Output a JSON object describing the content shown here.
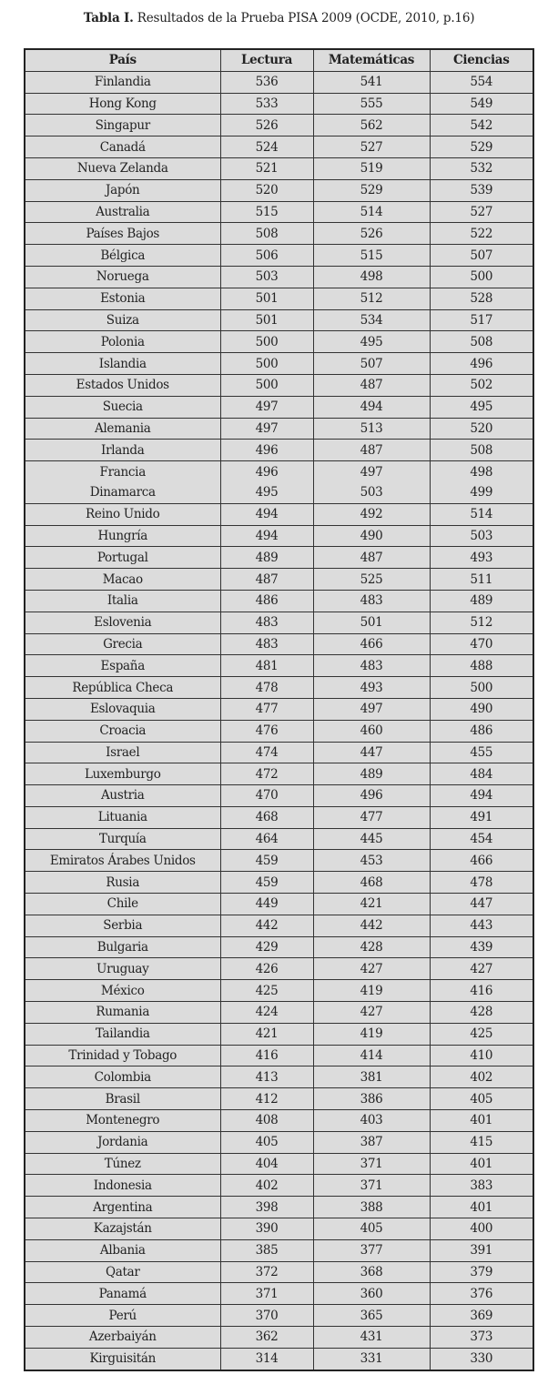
{
  "caption": {
    "label": "Tabla I.",
    "text": " Resultados de la Prueba PISA 2009 (OCDE, 2010, p.16)"
  },
  "table": {
    "headers": [
      "País",
      "Lectura",
      "Matemáticas",
      "Ciencias"
    ],
    "rows": [
      [
        "Finlandia",
        "536",
        "541",
        "554"
      ],
      [
        "Hong Kong",
        "533",
        "555",
        "549"
      ],
      [
        "Singapur",
        "526",
        "562",
        "542"
      ],
      [
        "Canadá",
        "524",
        "527",
        "529"
      ],
      [
        "Nueva Zelanda",
        "521",
        "519",
        "532"
      ],
      [
        "Japón",
        "520",
        "529",
        "539"
      ],
      [
        "Australia",
        "515",
        "514",
        "527"
      ],
      [
        "Países Bajos",
        "508",
        "526",
        "522"
      ],
      [
        "Bélgica",
        "506",
        "515",
        "507"
      ],
      [
        "Noruega",
        "503",
        "498",
        "500"
      ],
      [
        "Estonia",
        "501",
        "512",
        "528"
      ],
      [
        "Suiza",
        "501",
        "534",
        "517"
      ],
      [
        "Polonia",
        "500",
        "495",
        "508"
      ],
      [
        "Islandia",
        "500",
        "507",
        "496"
      ],
      [
        "Estados Unidos",
        "500",
        "487",
        "502"
      ],
      [
        "Suecia",
        "497",
        "494",
        "495"
      ],
      [
        "Alemania",
        "497",
        "513",
        "520"
      ],
      [
        "Irlanda",
        "496",
        "487",
        "508"
      ],
      [
        "Francia",
        "496",
        "497",
        "498"
      ],
      [
        "Dinamarca",
        "495",
        "503",
        "499"
      ],
      [
        "Reino Unido",
        "494",
        "492",
        "514"
      ],
      [
        "Hungría",
        "494",
        "490",
        "503"
      ],
      [
        "Portugal",
        "489",
        "487",
        "493"
      ],
      [
        "Macao",
        "487",
        "525",
        "511"
      ],
      [
        "Italia",
        "486",
        "483",
        "489"
      ],
      [
        "Eslovenia",
        "483",
        "501",
        "512"
      ],
      [
        "Grecia",
        "483",
        "466",
        "470"
      ],
      [
        "España",
        "481",
        "483",
        "488"
      ],
      [
        "República Checa",
        "478",
        "493",
        "500"
      ],
      [
        "Eslovaquia",
        "477",
        "497",
        "490"
      ],
      [
        "Croacia",
        "476",
        "460",
        "486"
      ],
      [
        "Israel",
        "474",
        "447",
        "455"
      ],
      [
        "Luxemburgo",
        "472",
        "489",
        "484"
      ],
      [
        "Austria",
        "470",
        "496",
        "494"
      ],
      [
        "Lituania",
        "468",
        "477",
        "491"
      ],
      [
        "Turquía",
        "464",
        "445",
        "454"
      ],
      [
        "Emiratos Árabes Unidos",
        "459",
        "453",
        "466"
      ],
      [
        "Rusia",
        "459",
        "468",
        "478"
      ],
      [
        "Chile",
        "449",
        "421",
        "447"
      ],
      [
        "Serbia",
        "442",
        "442",
        "443"
      ],
      [
        "Bulgaria",
        "429",
        "428",
        "439"
      ],
      [
        "Uruguay",
        "426",
        "427",
        "427"
      ],
      [
        "México",
        "425",
        "419",
        "416"
      ],
      [
        "Rumania",
        "424",
        "427",
        "428"
      ],
      [
        "Tailandia",
        "421",
        "419",
        "425"
      ],
      [
        "Trinidad y Tobago",
        "416",
        "414",
        "410"
      ],
      [
        "Colombia",
        "413",
        "381",
        "402"
      ],
      [
        "Brasil",
        "412",
        "386",
        "405"
      ],
      [
        "Montenegro",
        "408",
        "403",
        "401"
      ],
      [
        "Jordania",
        "405",
        "387",
        "415"
      ],
      [
        "Túnez",
        "404",
        "371",
        "401"
      ],
      [
        "Indonesia",
        "402",
        "371",
        "383"
      ],
      [
        "Argentina",
        "398",
        "388",
        "401"
      ],
      [
        "Kazajstán",
        "390",
        "405",
        "400"
      ],
      [
        "Albania",
        "385",
        "377",
        "391"
      ],
      [
        "Qatar",
        "372",
        "368",
        "379"
      ],
      [
        "Panamá",
        "371",
        "360",
        "376"
      ],
      [
        "Perú",
        "370",
        "365",
        "369"
      ],
      [
        "Azerbaiyán",
        "362",
        "431",
        "373"
      ],
      [
        "Kirguisitán",
        "314",
        "331",
        "330"
      ]
    ]
  }
}
